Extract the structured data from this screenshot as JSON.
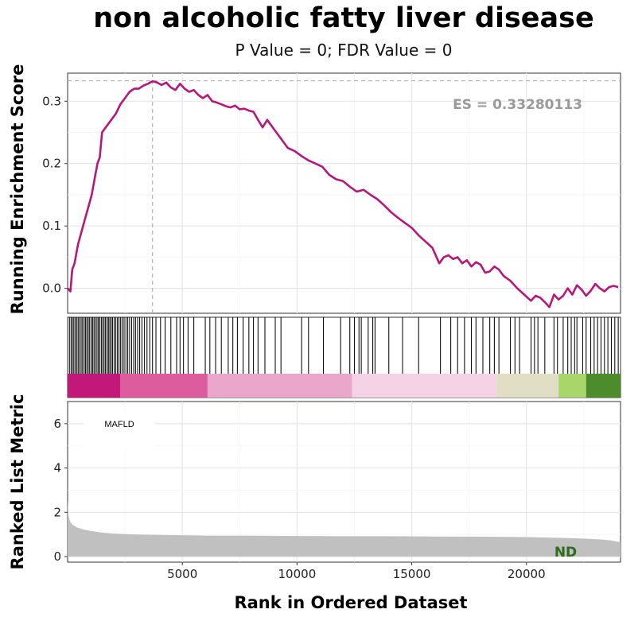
{
  "chart_data": {
    "type": "line",
    "title": "non alcoholic fatty liver disease",
    "subtitle": "P Value = 0; FDR Value = 0",
    "xlabel": "Rank in Ordered Dataset",
    "ylabel_top": "Running Enrichment Score",
    "ylabel_bottom": "Ranked List Metric",
    "es_label": "ES = 0.33280113",
    "es_value": 0.3328,
    "peak_rank": 3700,
    "x_range": [
      0,
      24100
    ],
    "x_ticks": [
      "5000",
      "10000",
      "15000",
      "20000"
    ],
    "top_panel": {
      "ylim": [
        -0.04,
        0.345
      ],
      "y_ticks": [
        "0.0",
        "0.1",
        "0.2",
        "0.3"
      ],
      "series": [
        {
          "color": "#b5177a",
          "x": [
            0,
            120,
            200,
            300,
            450,
            600,
            750,
            900,
            1050,
            1200,
            1300,
            1400,
            1500,
            1700,
            1900,
            2100,
            2300,
            2500,
            2700,
            2900,
            3100,
            3300,
            3500,
            3700,
            3900,
            4100,
            4300,
            4500,
            4700,
            4900,
            5100,
            5300,
            5500,
            5700,
            5900,
            6100,
            6300,
            6500,
            6700,
            6900,
            7100,
            7300,
            7500,
            7700,
            7900,
            8100,
            8300,
            8500,
            8700,
            9000,
            9300,
            9600,
            9900,
            10200,
            10500,
            10800,
            11100,
            11400,
            11700,
            12000,
            12300,
            12600,
            12900,
            13200,
            13500,
            13800,
            14100,
            14400,
            14700,
            15000,
            15300,
            15600,
            15900,
            16200,
            16400,
            16600,
            16800,
            17000,
            17200,
            17400,
            17600,
            17800,
            18000,
            18200,
            18400,
            18600,
            18800,
            19000,
            19300,
            19600,
            19900,
            20200,
            20400,
            20600,
            20800,
            21000,
            21200,
            21400,
            21600,
            21800,
            22000,
            22200,
            22400,
            22600,
            22800,
            23000,
            23200,
            23400,
            23600,
            23800,
            24000
          ],
          "values": [
            0.0,
            -0.005,
            0.03,
            0.04,
            0.07,
            0.09,
            0.11,
            0.13,
            0.15,
            0.18,
            0.2,
            0.21,
            0.25,
            0.26,
            0.27,
            0.28,
            0.295,
            0.305,
            0.315,
            0.32,
            0.32,
            0.325,
            0.328,
            0.332,
            0.33,
            0.326,
            0.33,
            0.322,
            0.318,
            0.328,
            0.32,
            0.315,
            0.318,
            0.31,
            0.305,
            0.31,
            0.3,
            0.298,
            0.295,
            0.292,
            0.29,
            0.293,
            0.287,
            0.288,
            0.285,
            0.283,
            0.27,
            0.258,
            0.27,
            0.255,
            0.24,
            0.225,
            0.22,
            0.212,
            0.205,
            0.2,
            0.195,
            0.182,
            0.175,
            0.172,
            0.163,
            0.155,
            0.158,
            0.15,
            0.143,
            0.133,
            0.122,
            0.113,
            0.105,
            0.097,
            0.085,
            0.075,
            0.065,
            0.04,
            0.05,
            0.053,
            0.047,
            0.05,
            0.04,
            0.045,
            0.035,
            0.042,
            0.038,
            0.025,
            0.027,
            0.035,
            0.03,
            0.02,
            0.012,
            0.0,
            -0.01,
            -0.02,
            -0.012,
            -0.015,
            -0.022,
            -0.03,
            -0.01,
            -0.018,
            -0.012,
            0.0,
            -0.01,
            0.005,
            -0.002,
            -0.012,
            -0.004,
            0.007,
            0.0,
            -0.005,
            0.002,
            0.004,
            0.002
          ]
        }
      ]
    },
    "gene_hits": [
      80,
      150,
      210,
      270,
      330,
      400,
      460,
      520,
      590,
      650,
      720,
      780,
      840,
      900,
      960,
      1030,
      1090,
      1150,
      1210,
      1280,
      1340,
      1400,
      1470,
      1530,
      1590,
      1650,
      1720,
      1780,
      1840,
      1900,
      1960,
      2030,
      2100,
      2170,
      2240,
      2310,
      2380,
      2460,
      2540,
      2620,
      2700,
      2790,
      2880,
      2960,
      3050,
      3140,
      3240,
      3350,
      3460,
      3580,
      3700,
      3850,
      4050,
      4250,
      4500,
      4750,
      4900,
      5050,
      5250,
      5500,
      6000,
      6200,
      6450,
      6700,
      7000,
      7200,
      7400,
      7650,
      7900,
      8100,
      8300,
      8600,
      9050,
      9300,
      10200,
      10500,
      11150,
      11900,
      12300,
      12500,
      12700,
      12800,
      13100,
      13300,
      13400,
      14000,
      14600,
      15300,
      16250,
      16700,
      17000,
      17300,
      17600,
      17800,
      18100,
      18400,
      18600,
      18800,
      19300,
      19500,
      19700,
      20200,
      20350,
      20500,
      20800,
      21200,
      21350,
      21600,
      21800,
      21950,
      22100,
      22200,
      22450,
      22600,
      22800,
      22950,
      23100,
      23250,
      23400,
      23550,
      23700,
      23850,
      24000
    ],
    "color_bands": [
      {
        "from": 0,
        "to": 2300,
        "color": "#c1187a"
      },
      {
        "from": 2300,
        "to": 6100,
        "color": "#dc5c9e"
      },
      {
        "from": 6100,
        "to": 12400,
        "color": "#eaa7cb"
      },
      {
        "from": 12400,
        "to": 18700,
        "color": "#f6d2e7"
      },
      {
        "from": 18700,
        "to": 21400,
        "color": "#e0dfc6"
      },
      {
        "from": 21400,
        "to": 22600,
        "color": "#a8d66a"
      },
      {
        "from": 22600,
        "to": 24100,
        "color": "#4c8c2c"
      }
    ],
    "bottom_panel": {
      "ylim": [
        -0.25,
        7
      ],
      "y_ticks": [
        "0",
        "2",
        "4",
        "6"
      ],
      "fill_color": "#c0c0c0",
      "x": [
        0,
        30,
        100,
        200,
        400,
        700,
        1000,
        1500,
        2000,
        3000,
        4000,
        6000,
        8000,
        10000,
        12000,
        14000,
        16000,
        18000,
        20000,
        21000,
        22000,
        22800,
        23300,
        23600,
        23900,
        24100
      ],
      "values": [
        2.6,
        1.9,
        1.6,
        1.45,
        1.32,
        1.22,
        1.16,
        1.08,
        1.04,
        1.0,
        0.98,
        0.95,
        0.94,
        0.93,
        0.92,
        0.92,
        0.91,
        0.9,
        0.88,
        0.86,
        0.83,
        0.8,
        0.77,
        0.74,
        0.69,
        0.64
      ]
    },
    "annotations": [
      {
        "text": "MAFLD",
        "x": 1700,
        "y": 6.0
      },
      {
        "text": "ND",
        "x": 21600,
        "y": 0.15
      }
    ]
  }
}
